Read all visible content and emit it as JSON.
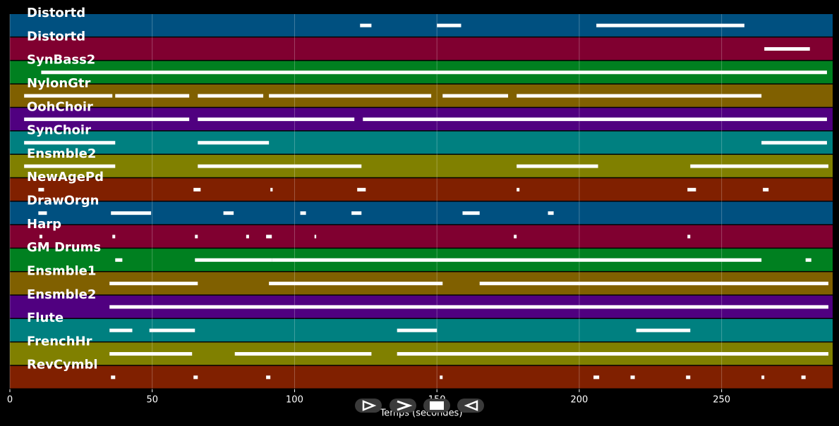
{
  "chart_data": {
    "type": "piano_roll",
    "x_label": "Temps (secondes)",
    "xlim": [
      0,
      289
    ],
    "xticks": [
      0,
      50,
      100,
      150,
      200,
      250
    ],
    "grid": true,
    "tracks": [
      {
        "name": "Distortd",
        "color": "#005080",
        "notes": [
          [
            123,
            127
          ],
          [
            150,
            158.5
          ],
          [
            206,
            258
          ]
        ]
      },
      {
        "name": "Distortd",
        "color": "#800030",
        "notes": [
          [
            265,
            281
          ]
        ]
      },
      {
        "name": "SynBass2",
        "color": "#008020",
        "notes": [
          [
            11,
            287
          ]
        ]
      },
      {
        "name": "NylonGtr",
        "color": "#806000",
        "notes": [
          [
            5,
            36
          ],
          [
            37,
            63
          ],
          [
            66,
            89
          ],
          [
            91,
            148
          ],
          [
            152,
            175
          ],
          [
            178,
            264
          ]
        ]
      },
      {
        "name": "OohChoir",
        "color": "#500080",
        "notes": [
          [
            5,
            63
          ],
          [
            66,
            121
          ],
          [
            124,
            287
          ]
        ]
      },
      {
        "name": "SynChoir",
        "color": "#008080",
        "notes": [
          [
            5,
            37
          ],
          [
            66,
            91
          ],
          [
            264,
            287
          ]
        ]
      },
      {
        "name": "Ensmble2",
        "color": "#808000",
        "notes": [
          [
            5,
            37
          ],
          [
            66,
            123.5
          ],
          [
            178,
            206.6
          ],
          [
            239,
            287.5
          ]
        ]
      },
      {
        "name": "NewAgePd",
        "color": "#802000",
        "notes": [
          [
            10,
            12
          ],
          [
            64.5,
            67
          ],
          [
            91.5,
            92.3
          ],
          [
            122,
            125
          ],
          [
            178,
            179
          ],
          [
            238,
            241
          ],
          [
            264.5,
            266.5
          ]
        ]
      },
      {
        "name": "DrawOrgn",
        "color": "#005080",
        "notes": [
          [
            10,
            13
          ],
          [
            35.5,
            49.6
          ],
          [
            75,
            78.6
          ],
          [
            102,
            104
          ],
          [
            120,
            123.5
          ],
          [
            159,
            165
          ],
          [
            189,
            191
          ]
        ]
      },
      {
        "name": "Harp",
        "color": "#800030",
        "notes": [
          [
            10.4,
            11.4
          ],
          [
            36,
            37
          ],
          [
            65,
            66
          ],
          [
            83,
            84
          ],
          [
            90,
            92
          ],
          [
            107,
            107.6
          ],
          [
            177,
            178
          ],
          [
            238,
            239
          ]
        ]
      },
      {
        "name": "GM Drums",
        "color": "#008020",
        "notes": [
          [
            37,
            39.5
          ],
          [
            65,
            92
          ],
          [
            92,
            264
          ],
          [
            279.5,
            281.5
          ]
        ]
      },
      {
        "name": "Ensmble1",
        "color": "#806000",
        "notes": [
          [
            35,
            66
          ],
          [
            91,
            152
          ],
          [
            165,
            287.5
          ]
        ]
      },
      {
        "name": "Ensmble2",
        "color": "#500080",
        "notes": [
          [
            35,
            287.5
          ]
        ]
      },
      {
        "name": "Flute",
        "color": "#008080",
        "notes": [
          [
            35,
            43
          ],
          [
            49,
            65
          ],
          [
            136,
            150
          ],
          [
            220,
            239
          ]
        ]
      },
      {
        "name": "FrenchHr",
        "color": "#808000",
        "notes": [
          [
            35,
            64
          ],
          [
            79,
            127
          ],
          [
            136,
            287.5
          ]
        ]
      },
      {
        "name": "RevCymbl",
        "color": "#802000",
        "notes": [
          [
            35.5,
            37
          ],
          [
            64.5,
            66
          ],
          [
            90,
            91.5
          ],
          [
            151,
            152
          ],
          [
            205,
            207
          ],
          [
            218,
            219.5
          ],
          [
            237.5,
            239
          ],
          [
            264,
            265
          ],
          [
            278,
            279.5
          ]
        ]
      }
    ]
  }
}
